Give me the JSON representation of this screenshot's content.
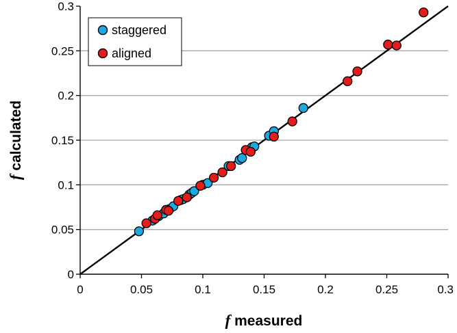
{
  "chart_data": {
    "type": "scatter",
    "xlabel_var": "f",
    "xlabel_text": " measured",
    "ylabel_var": "f",
    "ylabel_text": " calculated",
    "xlim": [
      0,
      0.3
    ],
    "ylim": [
      0,
      0.3
    ],
    "x_ticks": [
      "0",
      "0.05",
      "0.1",
      "0.15",
      "0.2",
      "0.25",
      "0.3"
    ],
    "y_ticks": [
      "0",
      "0.05",
      "0.1",
      "0.15",
      "0.2",
      "0.25",
      "0.3"
    ],
    "grid": "horizontal",
    "legend_position": "top-left",
    "reference_line": {
      "from": [
        0,
        0
      ],
      "to": [
        0.3,
        0.3
      ],
      "color": "#000000"
    },
    "series": [
      {
        "name": "staggered",
        "color": "#1ea7e1",
        "points": [
          {
            "x": 0.048,
            "y": 0.048
          },
          {
            "x": 0.059,
            "y": 0.06
          },
          {
            "x": 0.064,
            "y": 0.065
          },
          {
            "x": 0.068,
            "y": 0.068
          },
          {
            "x": 0.073,
            "y": 0.073
          },
          {
            "x": 0.076,
            "y": 0.076
          },
          {
            "x": 0.082,
            "y": 0.083
          },
          {
            "x": 0.084,
            "y": 0.084
          },
          {
            "x": 0.089,
            "y": 0.089
          },
          {
            "x": 0.091,
            "y": 0.091
          },
          {
            "x": 0.093,
            "y": 0.093
          },
          {
            "x": 0.1,
            "y": 0.1
          },
          {
            "x": 0.104,
            "y": 0.102
          },
          {
            "x": 0.121,
            "y": 0.121
          },
          {
            "x": 0.13,
            "y": 0.128
          },
          {
            "x": 0.132,
            "y": 0.13
          },
          {
            "x": 0.14,
            "y": 0.142
          },
          {
            "x": 0.142,
            "y": 0.143
          },
          {
            "x": 0.154,
            "y": 0.155
          },
          {
            "x": 0.158,
            "y": 0.16
          },
          {
            "x": 0.182,
            "y": 0.186
          }
        ]
      },
      {
        "name": "aligned",
        "color": "#e41c1c",
        "points": [
          {
            "x": 0.054,
            "y": 0.057
          },
          {
            "x": 0.061,
            "y": 0.062
          },
          {
            "x": 0.063,
            "y": 0.066
          },
          {
            "x": 0.07,
            "y": 0.072
          },
          {
            "x": 0.072,
            "y": 0.071
          },
          {
            "x": 0.08,
            "y": 0.082
          },
          {
            "x": 0.087,
            "y": 0.086
          },
          {
            "x": 0.098,
            "y": 0.099
          },
          {
            "x": 0.109,
            "y": 0.108
          },
          {
            "x": 0.116,
            "y": 0.114
          },
          {
            "x": 0.123,
            "y": 0.121
          },
          {
            "x": 0.135,
            "y": 0.139
          },
          {
            "x": 0.139,
            "y": 0.137
          },
          {
            "x": 0.158,
            "y": 0.154
          },
          {
            "x": 0.173,
            "y": 0.171
          },
          {
            "x": 0.218,
            "y": 0.216
          },
          {
            "x": 0.226,
            "y": 0.227
          },
          {
            "x": 0.251,
            "y": 0.257
          },
          {
            "x": 0.258,
            "y": 0.256
          },
          {
            "x": 0.28,
            "y": 0.293
          }
        ]
      }
    ]
  }
}
